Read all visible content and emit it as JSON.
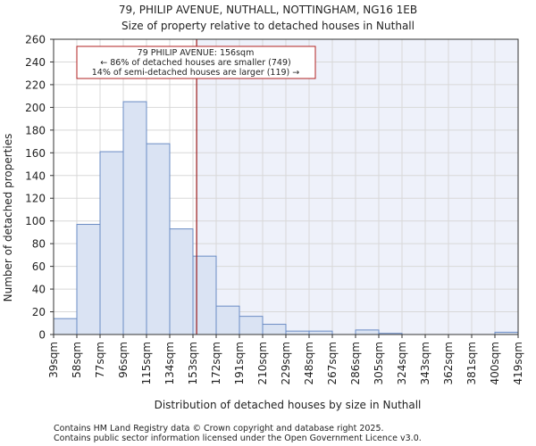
{
  "chart_data": {
    "type": "bar",
    "title_line1": "79, PHILIP AVENUE, NUTHALL, NOTTINGHAM, NG16 1EB",
    "title_line2": "Size of property relative to detached houses in Nuthall",
    "xlabel": "Distribution of detached houses by size in Nuthall",
    "ylabel": "Number of detached properties",
    "ylim": [
      0,
      260
    ],
    "yticks": [
      0,
      20,
      40,
      60,
      80,
      100,
      120,
      140,
      160,
      180,
      200,
      220,
      240,
      260
    ],
    "bin_edges": [
      39,
      58,
      77,
      96,
      115,
      134,
      153,
      172,
      191,
      210,
      229,
      248,
      267,
      286,
      305,
      324,
      343,
      362,
      381,
      400,
      419
    ],
    "tick_labels": [
      "39sqm",
      "58sqm",
      "77sqm",
      "96sqm",
      "115sqm",
      "134sqm",
      "153sqm",
      "172sqm",
      "191sqm",
      "210sqm",
      "229sqm",
      "248sqm",
      "267sqm",
      "286sqm",
      "305sqm",
      "324sqm",
      "343sqm",
      "362sqm",
      "381sqm",
      "400sqm",
      "419sqm"
    ],
    "values": [
      14,
      97,
      161,
      205,
      168,
      93,
      69,
      25,
      16,
      9,
      3,
      3,
      0,
      4,
      1,
      0,
      0,
      0,
      0,
      2
    ],
    "property_value": 156,
    "annotation": {
      "line1": "79 PHILIP AVENUE: 156sqm",
      "line2": "← 86% of detached houses are smaller (749)",
      "line3": "14% of semi-detached houses are larger (119) →"
    },
    "colors": {
      "bar_fill": "#dae3f3",
      "bar_edge": "#6b8cc4",
      "highlight_bg": "#eef1fa",
      "marker_line": "#9a1a1a",
      "annotation_border": "#b22222",
      "grid": "#d8d8d8",
      "axis": "#333333"
    }
  },
  "footer": {
    "line1": "Contains HM Land Registry data © Crown copyright and database right 2025.",
    "line2": "Contains public sector information licensed under the Open Government Licence v3.0."
  }
}
